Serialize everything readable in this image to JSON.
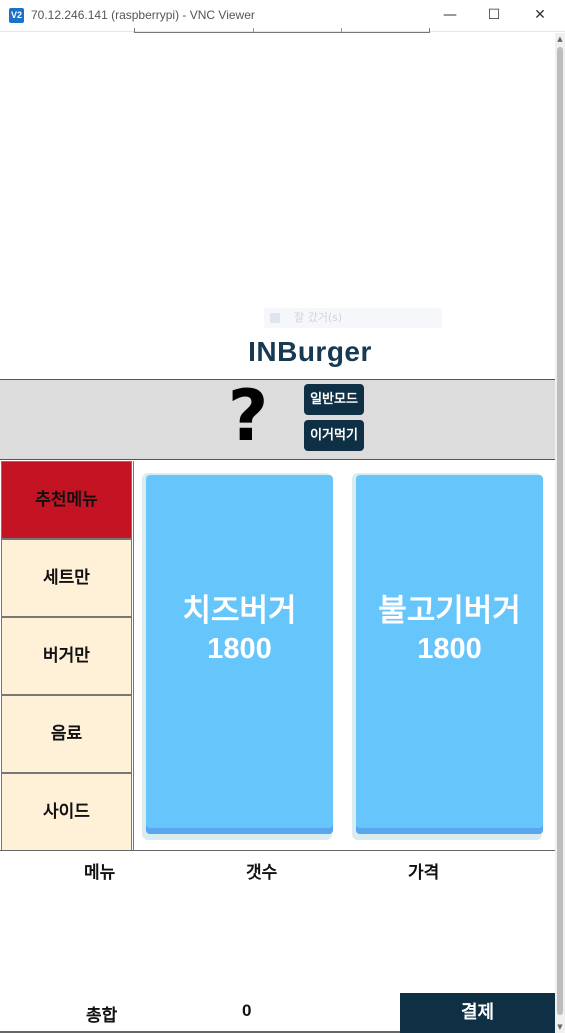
{
  "window": {
    "icon": "V2",
    "title": "70.12.246.141 (raspberrypi) - VNC Viewer",
    "minimize": "—",
    "maximize": "☐",
    "close": "✕"
  },
  "ghost_toolbar": {
    "text": "잘 갔거(s)"
  },
  "brand": "INBurger",
  "header": {
    "help_symbol": "?",
    "mode_normal": "일반모드",
    "mode_eat": "이거먹기"
  },
  "categories": [
    {
      "label": "추천메뉴",
      "active": true
    },
    {
      "label": "세트만",
      "active": false
    },
    {
      "label": "버거만",
      "active": false
    },
    {
      "label": "음료",
      "active": false
    },
    {
      "label": "사이드",
      "active": false
    }
  ],
  "menu_items": [
    {
      "name": "치즈버거",
      "price": "1800"
    },
    {
      "name": "불고기버거",
      "price": "1800"
    }
  ],
  "order_table": {
    "col_menu": "메뉴",
    "col_qty": "갯수",
    "col_price": "가격"
  },
  "footer": {
    "total_label": "총합",
    "total_value": "0",
    "pay_label": "결제"
  },
  "colors": {
    "brand": "#173a52",
    "dark_button": "#0f2f44",
    "active_category": "#c41424",
    "category_bg": "#fff0d8",
    "card_bg": "#66c6fb"
  }
}
